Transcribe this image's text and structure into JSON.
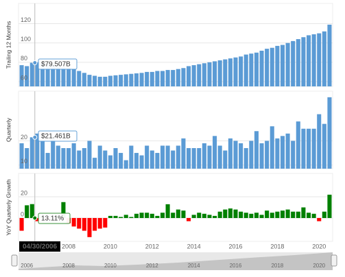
{
  "chart_data": [
    {
      "type": "bar",
      "ylabel": "Trailing 12 Months",
      "color": "#5b9bd5",
      "annotation": "$79.507B",
      "x": [
        2005.75,
        2006,
        2006.25,
        2006.5,
        2006.75,
        2007,
        2007.25,
        2007.5,
        2007.75,
        2008,
        2008.25,
        2008.5,
        2008.75,
        2009,
        2009.25,
        2009.5,
        2009.75,
        2010,
        2010.25,
        2010.5,
        2010.75,
        2011,
        2011.25,
        2011.5,
        2011.75,
        2012,
        2012.25,
        2012.5,
        2012.75,
        2013,
        2013.25,
        2013.5,
        2013.75,
        2014,
        2014.25,
        2014.5,
        2014.75,
        2015,
        2015.25,
        2015.5,
        2015.75,
        2016,
        2016.25,
        2016.5,
        2016.75,
        2017,
        2017.25,
        2017.5,
        2017.75,
        2018,
        2018.25,
        2018.5,
        2018.75,
        2019,
        2019.25,
        2019.5,
        2019.75,
        2020,
        2020.25,
        2020.5
      ],
      "values": [
        77,
        76,
        79.507,
        80,
        79,
        78,
        77,
        76,
        75,
        74,
        73,
        71,
        69,
        67,
        66,
        65,
        65,
        66,
        66.5,
        67,
        67.5,
        68,
        68.5,
        69,
        70,
        70,
        71,
        71,
        72,
        72,
        73,
        74,
        76,
        77,
        78,
        79,
        80,
        81,
        82,
        83,
        84,
        85,
        86,
        88,
        89,
        90,
        92,
        94,
        95,
        97,
        98,
        100,
        102,
        104,
        106,
        108,
        109,
        110,
        112,
        119
      ],
      "xlim": [
        2005.6,
        2020.65
      ],
      "ylim": [
        55,
        141
      ],
      "yticks": [
        60,
        80,
        100,
        120
      ],
      "grid": true
    },
    {
      "type": "bar",
      "ylabel": "Quarterly",
      "color": "#5b9bd5",
      "annotation": "$21.461B",
      "x": [
        2005.75,
        2006,
        2006.25,
        2006.5,
        2006.75,
        2007,
        2007.25,
        2007.5,
        2007.75,
        2008,
        2008.25,
        2008.5,
        2008.75,
        2009,
        2009.25,
        2009.5,
        2009.75,
        2010,
        2010.25,
        2010.5,
        2010.75,
        2011,
        2011.25,
        2011.5,
        2011.75,
        2012,
        2012.25,
        2012.5,
        2012.75,
        2013,
        2013.25,
        2013.5,
        2013.75,
        2014,
        2014.25,
        2014.5,
        2014.75,
        2015,
        2015.25,
        2015.5,
        2015.75,
        2016,
        2016.25,
        2016.5,
        2016.75,
        2017,
        2017.25,
        2017.5,
        2017.75,
        2018,
        2018.25,
        2018.5,
        2018.75,
        2019,
        2019.25,
        2019.5,
        2019.75,
        2020,
        2020.25,
        2020.5
      ],
      "values": [
        19,
        17,
        21.461,
        23,
        20,
        15,
        21,
        18,
        17,
        17,
        19,
        16,
        17,
        20,
        13,
        18,
        16,
        14,
        17,
        15,
        12,
        18,
        15,
        14,
        18,
        16,
        15,
        18,
        18,
        16,
        18,
        21,
        17,
        17,
        17,
        19,
        18,
        22,
        18,
        16,
        21,
        20,
        19,
        17,
        20,
        24,
        19,
        20,
        26,
        21,
        22,
        23,
        20,
        28,
        25,
        25,
        25,
        31,
        27,
        38
      ],
      "xlim": [
        2005.6,
        2020.65
      ],
      "ylim": [
        8.5,
        40.5
      ],
      "yticks": [
        10,
        20
      ],
      "grid": true
    },
    {
      "type": "bar",
      "ylabel": "YoY Quarterly Growth",
      "color_positive": "#008000",
      "color_negative": "#ff0000",
      "annotation": "13.11%",
      "hover_date": "04/30/2006",
      "x": [
        2005.75,
        2006,
        2006.25,
        2006.5,
        2006.75,
        2007,
        2007.25,
        2007.5,
        2007.75,
        2008,
        2008.25,
        2008.5,
        2008.75,
        2009,
        2009.25,
        2009.5,
        2009.75,
        2010,
        2010.25,
        2010.5,
        2010.75,
        2011,
        2011.25,
        2011.5,
        2011.75,
        2012,
        2012.25,
        2012.5,
        2012.75,
        2013,
        2013.25,
        2013.5,
        2013.75,
        2014,
        2014.25,
        2014.5,
        2014.75,
        2015,
        2015.25,
        2015.5,
        2015.75,
        2016,
        2016.25,
        2016.5,
        2016.75,
        2017,
        2017.25,
        2017.5,
        2017.75,
        2018,
        2018.25,
        2018.5,
        2018.75,
        2019,
        2019.25,
        2019.5,
        2019.75,
        2020,
        2020.25,
        2020.5
      ],
      "values": [
        -12,
        12,
        13.11,
        -3,
        1,
        -1,
        0,
        2,
        15,
        -5,
        -8,
        -10,
        -12,
        -18,
        -12,
        -10,
        -9,
        2,
        2,
        1,
        3,
        1,
        4,
        5,
        5,
        4,
        2,
        5,
        13,
        5,
        8,
        7,
        -3,
        3,
        5,
        4,
        3,
        2,
        6,
        8,
        9,
        8,
        6,
        5,
        4,
        5,
        3,
        7,
        5,
        6,
        7,
        8,
        6,
        6,
        10,
        5,
        4,
        -3,
        6,
        22
      ],
      "xlim": [
        2005.6,
        2020.65
      ],
      "xticks": [
        2008,
        2010,
        2012,
        2014,
        2016,
        2018,
        2020
      ],
      "ylim": [
        -22,
        42
      ],
      "yticks": [
        0,
        20
      ],
      "grid": true
    },
    {
      "type": "navigator",
      "xlim": [
        2005.6,
        2020.65
      ],
      "xticks": [
        2006,
        2008,
        2010,
        2012,
        2014,
        2016,
        2018,
        2020
      ]
    }
  ]
}
